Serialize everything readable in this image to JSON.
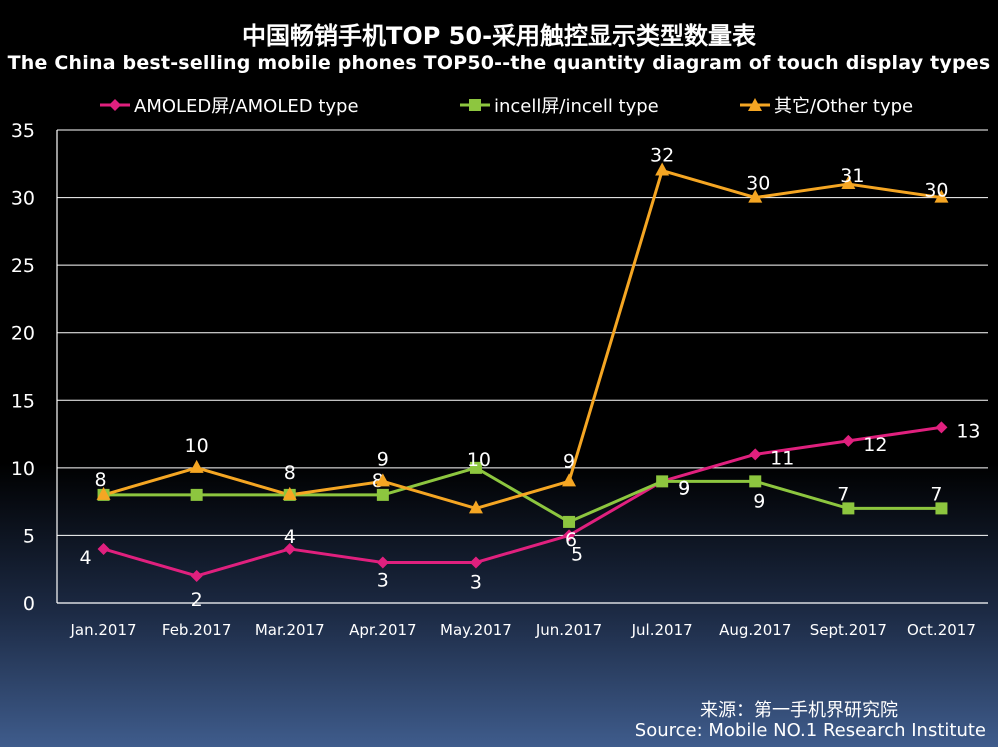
{
  "title_cn": "中国畅销手机TOP 50-采用触控显示类型数量表",
  "title_en": "The China best-selling mobile phones TOP50--the quantity diagram of touch display types",
  "source_cn": "来源：第一手机界研究院",
  "source_en": "Source: Mobile NO.1 Research Institute",
  "chart_data": {
    "type": "line",
    "title": "中国畅销手机TOP 50-采用触控显示类型数量表",
    "subtitle": "The China best-selling mobile phones TOP50--the quantity diagram of touch display types",
    "categories": [
      "Jan.2017",
      "Feb.2017",
      "Mar.2017",
      "Apr.2017",
      "May.2017",
      "Jun.2017",
      "Jul.2017",
      "Aug.2017",
      "Sept.2017",
      "Oct.2017"
    ],
    "series": [
      {
        "name": "AMOLED屏/AMOLED type",
        "color": "#e0207e",
        "marker": "diamond",
        "values": [
          4,
          2,
          4,
          3,
          3,
          5,
          9,
          11,
          12,
          13
        ]
      },
      {
        "name": "incell屏/incell type",
        "color": "#8dc63f",
        "marker": "square",
        "values": [
          8,
          8,
          8,
          8,
          10,
          6,
          9,
          9,
          7,
          7
        ]
      },
      {
        "name": "其它/Other type",
        "color": "#f5a623",
        "marker": "triangle",
        "values": [
          8,
          10,
          8,
          9,
          7,
          9,
          32,
          30,
          31,
          30
        ]
      }
    ],
    "yticks": [
      "0",
      "5",
      "10",
      "15",
      "20",
      "25",
      "30",
      "35"
    ],
    "ylim": [
      0,
      35
    ],
    "grid": true,
    "legend": "top",
    "xlabel": "",
    "ylabel": ""
  }
}
